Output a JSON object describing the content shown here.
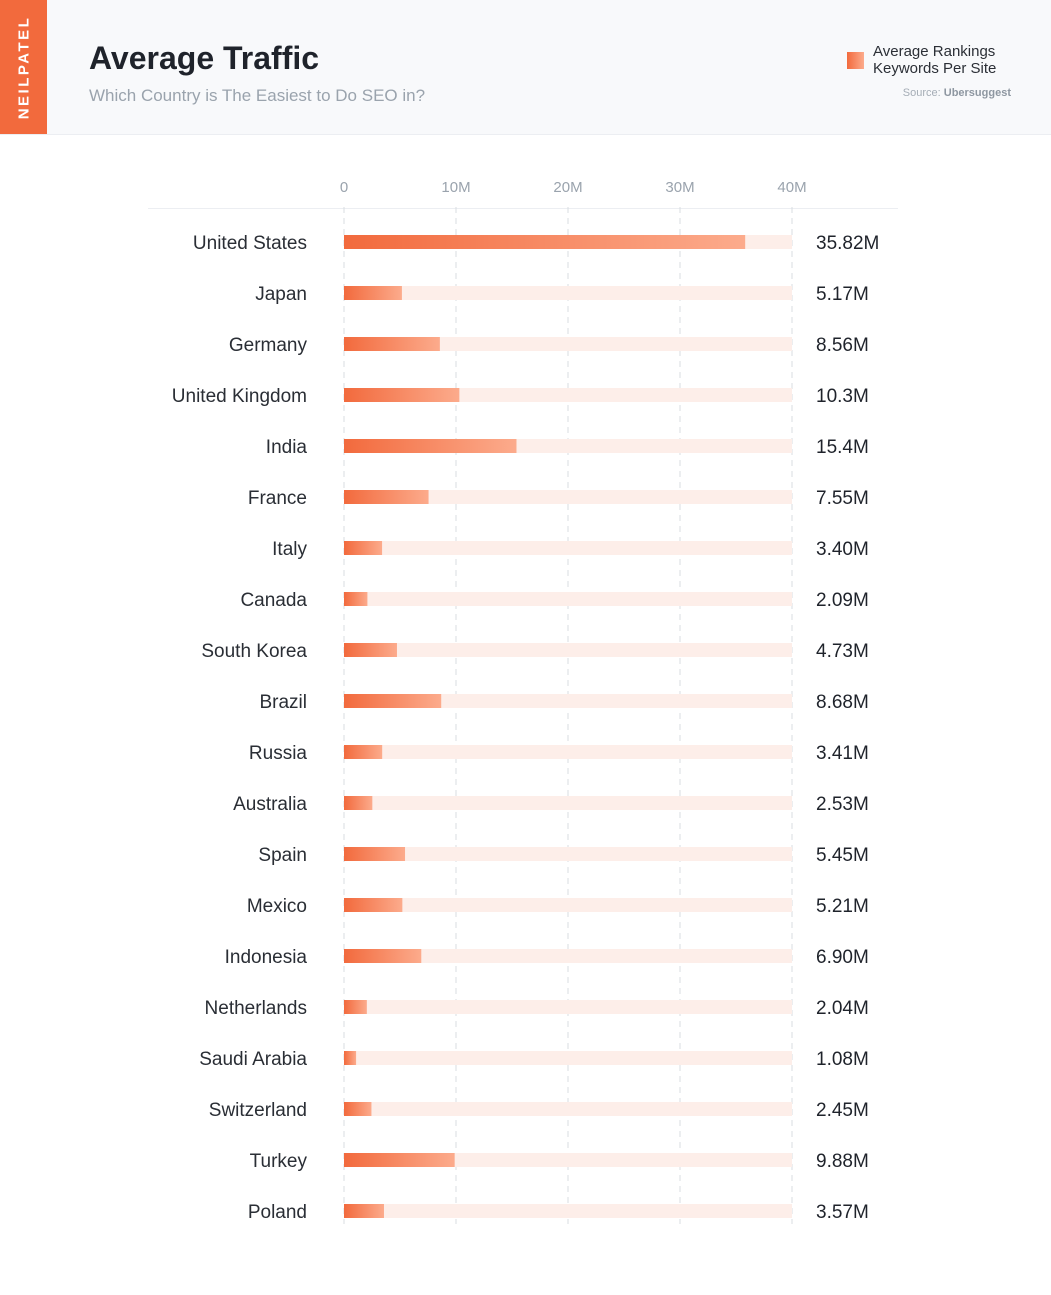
{
  "brand": {
    "name": "NEILPATEL",
    "color": "#f26a3d"
  },
  "header": {
    "title": "Average Traffic",
    "subtitle": "Which Country is The Easiest to Do SEO in?",
    "legend_label": "Average Rankings Keywords Per Site",
    "source_label": "Source:",
    "source_name": "Ubersuggest"
  },
  "chart_data": {
    "type": "bar",
    "orientation": "horizontal",
    "categories": [
      "United States",
      "Japan",
      "Germany",
      "United Kingdom",
      "India",
      "France",
      "Italy",
      "Canada",
      "South Korea",
      "Brazil",
      "Russia",
      "Australia",
      "Spain",
      "Mexico",
      "Indonesia",
      "Netherlands",
      "Saudi Arabia",
      "Switzerland",
      "Turkey",
      "Poland"
    ],
    "values": [
      35.82,
      5.17,
      8.56,
      10.3,
      15.4,
      7.55,
      3.4,
      2.09,
      4.73,
      8.68,
      3.41,
      2.53,
      5.45,
      5.21,
      6.9,
      2.04,
      1.08,
      2.45,
      9.88,
      3.57
    ],
    "value_labels": [
      "35.82M",
      "5.17M",
      "8.56M",
      "10.3M",
      "15.4M",
      "7.55M",
      "3.40M",
      "2.09M",
      "4.73M",
      "8.68M",
      "3.41M",
      "2.53M",
      "5.45M",
      "5.21M",
      "6.90M",
      "2.04M",
      "1.08M",
      "2.45M",
      "9.88M",
      "3.57M"
    ],
    "unit": "M",
    "xlim": [
      0,
      40
    ],
    "ticks": [
      0,
      10,
      20,
      30,
      40
    ],
    "tick_labels": [
      "0",
      "10M",
      "20M",
      "30M",
      "40M"
    ],
    "grid": true,
    "legend_position": "top-right",
    "series_name": "Average Rankings Keywords Per Site",
    "colors": {
      "bar_start": "#f26a3d",
      "bar_end": "#fcab8c",
      "track": "#fdeee9",
      "grid": "#d9dde2"
    }
  }
}
